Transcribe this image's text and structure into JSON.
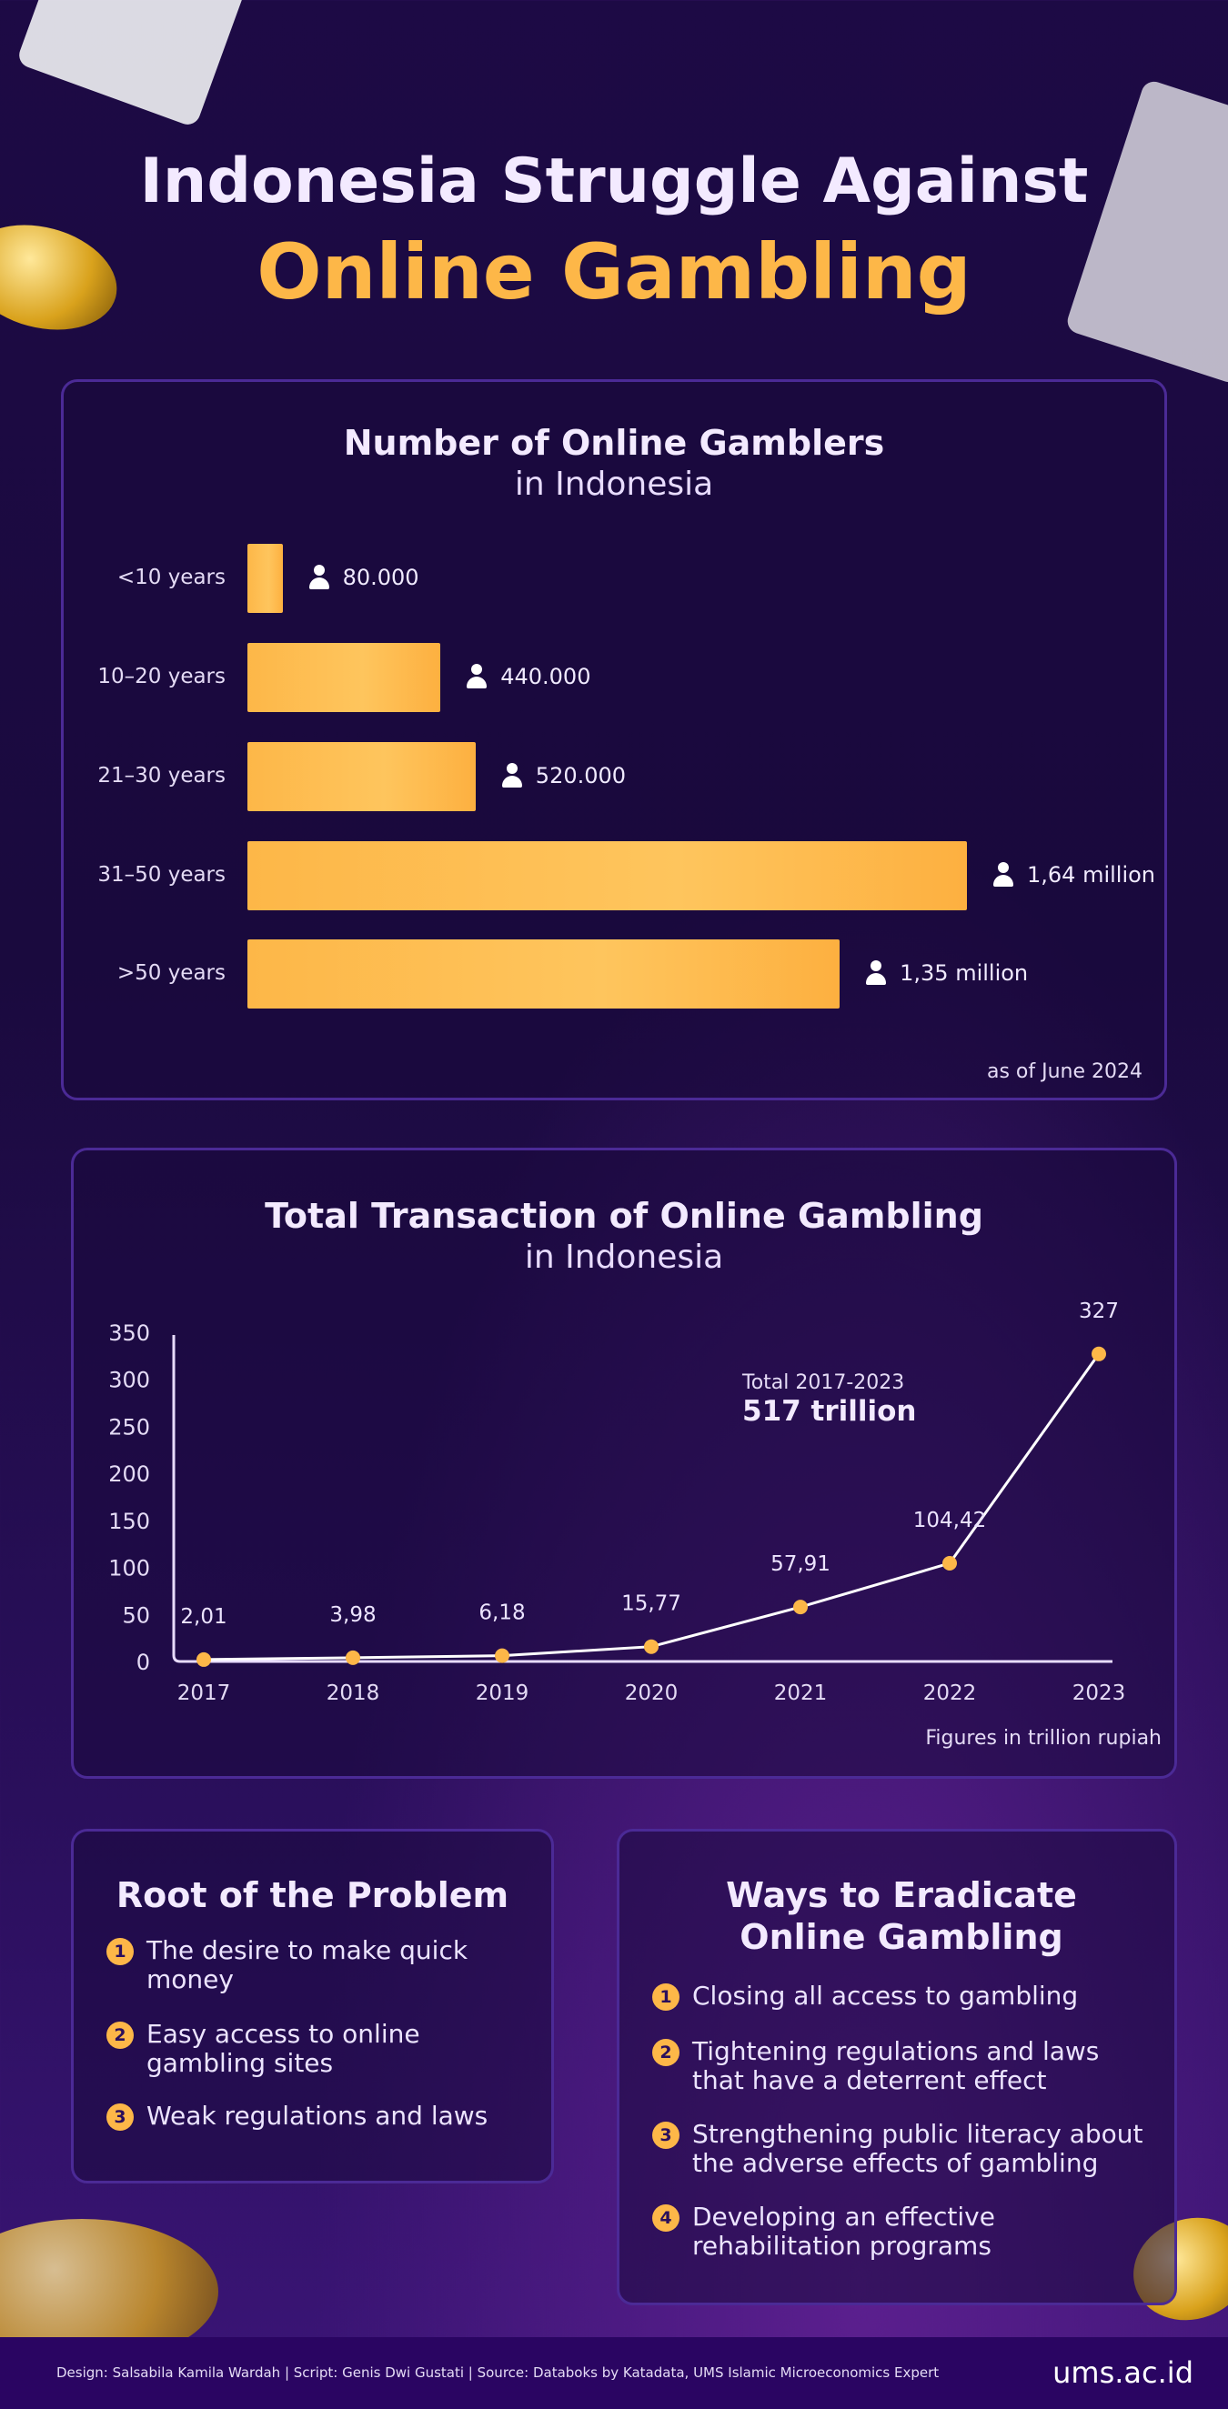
{
  "header": {
    "line1": "Indonesia Struggle Against",
    "line2": "Online Gambling"
  },
  "gamblers": {
    "title": "Number of Online Gamblers",
    "subtitle": "in Indonesia",
    "note": "as of June 2024",
    "rows": [
      {
        "label": "<10 years",
        "value": 80000,
        "display": "80.000"
      },
      {
        "label": "10–20 years",
        "value": 440000,
        "display": "440.000"
      },
      {
        "label": "21–30 years",
        "value": 520000,
        "display": "520.000"
      },
      {
        "label": "31–50 years",
        "value": 1640000,
        "display": "1,64 million"
      },
      {
        "label": ">50 years",
        "value": 1350000,
        "display": "1,35 million"
      }
    ]
  },
  "chart_data": {
    "type": "line",
    "title": "Total Transaction of Online Gambling",
    "subtitle": "in Indonesia",
    "x": [
      "2017",
      "2018",
      "2019",
      "2020",
      "2021",
      "2022",
      "2023"
    ],
    "values": [
      2.01,
      3.98,
      6.18,
      15.77,
      57.91,
      104.42,
      327
    ],
    "labels": [
      "2,01",
      "3,98",
      "6,18",
      "15,77",
      "57,91",
      "104,42",
      "327"
    ],
    "yticks": [
      "0",
      "50",
      "100",
      "150",
      "200",
      "250",
      "300",
      "350"
    ],
    "ylim": [
      0,
      350
    ],
    "annotation": {
      "label": "Total 2017-2023",
      "value": "517 trillion"
    },
    "note": "Figures in trillion rupiah",
    "colors": {
      "line": "#ffffff",
      "marker": "#fdb748"
    }
  },
  "root": {
    "title": "Root of the Problem",
    "items": [
      {
        "n": "1",
        "text": "The desire to make quick money"
      },
      {
        "n": "2",
        "text": "Easy access to online gambling sites"
      },
      {
        "n": "3",
        "text": "Weak regulations and laws"
      }
    ]
  },
  "ways": {
    "title": "Ways to Eradicate Online Gambling",
    "items": [
      {
        "n": "1",
        "text": "Closing all access to gambling"
      },
      {
        "n": "2",
        "text": "Tightening regulations and laws that have a deterrent effect"
      },
      {
        "n": "3",
        "text": "Strengthening public literacy about the adverse effects of gambling"
      },
      {
        "n": "4",
        "text": "Developing an effective rehabilitation programs"
      }
    ]
  },
  "footer": {
    "credits": "Design: Salsabila Kamila Wardah | Script: Genis Dwi Gustati | Source:  Databoks by Katadata, UMS Islamic Microeconomics Expert",
    "site": "ums.ac.id"
  },
  "colors": {
    "accent": "#fdb748",
    "panel_border": "#4b2a96",
    "footer": "#2a0562"
  }
}
